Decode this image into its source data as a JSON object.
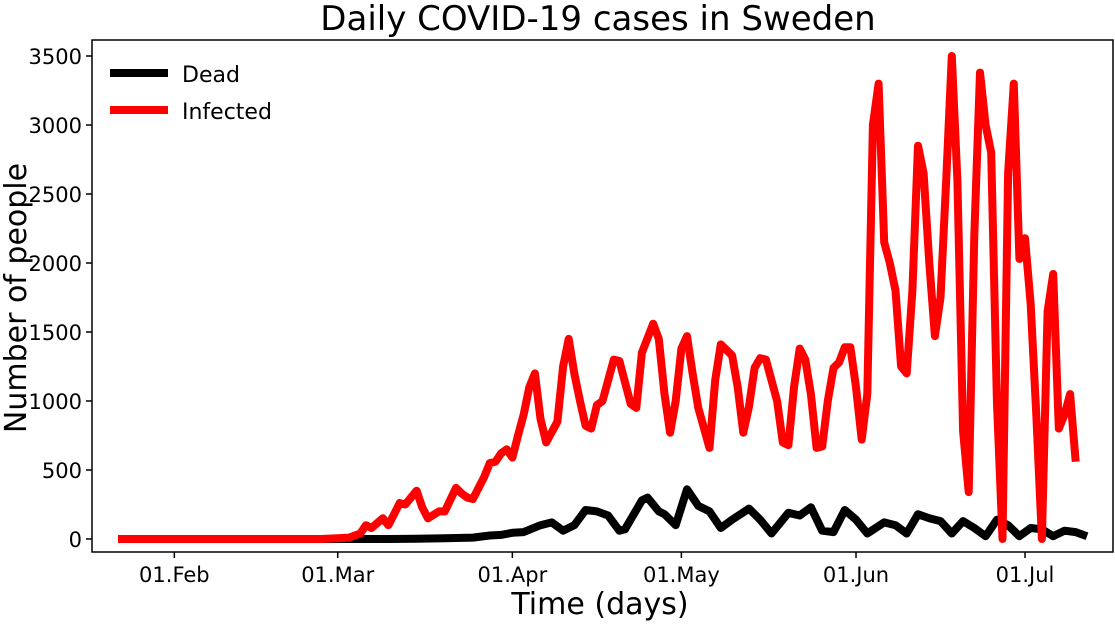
{
  "chart_data": {
    "type": "line",
    "title": "Daily COVID-19 cases in Sweden",
    "xlabel": "Time (days)",
    "ylabel": "Number of people",
    "x_start": "2020-01-22",
    "x_end": "2020-07-12",
    "ylim": [
      -100,
      3600
    ],
    "yticks": [
      0,
      500,
      1000,
      1500,
      2000,
      2500,
      3000,
      3500
    ],
    "xticks": [
      {
        "date": "2020-02-01",
        "label": "01.Feb"
      },
      {
        "date": "2020-03-01",
        "label": "01.Mar"
      },
      {
        "date": "2020-04-01",
        "label": "01.Apr"
      },
      {
        "date": "2020-05-01",
        "label": "01.May"
      },
      {
        "date": "2020-06-01",
        "label": "01.Jun"
      },
      {
        "date": "2020-07-01",
        "label": "01.Jul"
      }
    ],
    "grid": false,
    "legend_position": "top-left",
    "series": [
      {
        "name": "Dead",
        "color": "#000000",
        "points": [
          [
            "2020-01-22",
            0
          ],
          [
            "2020-03-01",
            0
          ],
          [
            "2020-03-10",
            0
          ],
          [
            "2020-03-15",
            2
          ],
          [
            "2020-03-20",
            5
          ],
          [
            "2020-03-25",
            10
          ],
          [
            "2020-03-28",
            25
          ],
          [
            "2020-03-30",
            30
          ],
          [
            "2020-04-01",
            45
          ],
          [
            "2020-04-03",
            50
          ],
          [
            "2020-04-06",
            100
          ],
          [
            "2020-04-08",
            120
          ],
          [
            "2020-04-10",
            60
          ],
          [
            "2020-04-12",
            100
          ],
          [
            "2020-04-14",
            210
          ],
          [
            "2020-04-16",
            200
          ],
          [
            "2020-04-18",
            170
          ],
          [
            "2020-04-20",
            60
          ],
          [
            "2020-04-21",
            70
          ],
          [
            "2020-04-24",
            280
          ],
          [
            "2020-04-25",
            300
          ],
          [
            "2020-04-27",
            200
          ],
          [
            "2020-04-28",
            180
          ],
          [
            "2020-04-30",
            100
          ],
          [
            "2020-05-02",
            360
          ],
          [
            "2020-05-04",
            240
          ],
          [
            "2020-05-06",
            200
          ],
          [
            "2020-05-08",
            80
          ],
          [
            "2020-05-10",
            140
          ],
          [
            "2020-05-13",
            220
          ],
          [
            "2020-05-15",
            140
          ],
          [
            "2020-05-17",
            40
          ],
          [
            "2020-05-20",
            190
          ],
          [
            "2020-05-22",
            170
          ],
          [
            "2020-05-24",
            230
          ],
          [
            "2020-05-26",
            60
          ],
          [
            "2020-05-28",
            50
          ],
          [
            "2020-05-30",
            210
          ],
          [
            "2020-06-01",
            140
          ],
          [
            "2020-06-03",
            40
          ],
          [
            "2020-06-06",
            120
          ],
          [
            "2020-06-08",
            100
          ],
          [
            "2020-06-10",
            40
          ],
          [
            "2020-06-12",
            180
          ],
          [
            "2020-06-14",
            150
          ],
          [
            "2020-06-16",
            130
          ],
          [
            "2020-06-18",
            40
          ],
          [
            "2020-06-20",
            130
          ],
          [
            "2020-06-22",
            80
          ],
          [
            "2020-06-24",
            20
          ],
          [
            "2020-06-26",
            140
          ],
          [
            "2020-06-28",
            100
          ],
          [
            "2020-06-30",
            20
          ],
          [
            "2020-07-02",
            80
          ],
          [
            "2020-07-04",
            70
          ],
          [
            "2020-07-06",
            20
          ],
          [
            "2020-07-08",
            60
          ],
          [
            "2020-07-10",
            50
          ],
          [
            "2020-07-12",
            20
          ]
        ]
      },
      {
        "name": "Infected",
        "color": "#ff0000",
        "points": [
          [
            "2020-01-22",
            0
          ],
          [
            "2020-02-27",
            0
          ],
          [
            "2020-03-01",
            5
          ],
          [
            "2020-03-03",
            10
          ],
          [
            "2020-03-05",
            40
          ],
          [
            "2020-03-06",
            100
          ],
          [
            "2020-03-07",
            80
          ],
          [
            "2020-03-09",
            150
          ],
          [
            "2020-03-10",
            100
          ],
          [
            "2020-03-11",
            180
          ],
          [
            "2020-03-12",
            260
          ],
          [
            "2020-03-13",
            250
          ],
          [
            "2020-03-15",
            350
          ],
          [
            "2020-03-16",
            230
          ],
          [
            "2020-03-17",
            150
          ],
          [
            "2020-03-19",
            200
          ],
          [
            "2020-03-20",
            200
          ],
          [
            "2020-03-22",
            370
          ],
          [
            "2020-03-23",
            330
          ],
          [
            "2020-03-24",
            300
          ],
          [
            "2020-03-25",
            290
          ],
          [
            "2020-03-27",
            450
          ],
          [
            "2020-03-28",
            550
          ],
          [
            "2020-03-29",
            560
          ],
          [
            "2020-03-30",
            620
          ],
          [
            "2020-03-31",
            650
          ],
          [
            "2020-04-01",
            590
          ],
          [
            "2020-04-02",
            750
          ],
          [
            "2020-04-03",
            900
          ],
          [
            "2020-04-04",
            1100
          ],
          [
            "2020-04-05",
            1200
          ],
          [
            "2020-04-06",
            870
          ],
          [
            "2020-04-07",
            700
          ],
          [
            "2020-04-09",
            850
          ],
          [
            "2020-04-10",
            1250
          ],
          [
            "2020-04-11",
            1450
          ],
          [
            "2020-04-12",
            1200
          ],
          [
            "2020-04-13",
            1000
          ],
          [
            "2020-04-14",
            820
          ],
          [
            "2020-04-15",
            800
          ],
          [
            "2020-04-16",
            970
          ],
          [
            "2020-04-17",
            1000
          ],
          [
            "2020-04-19",
            1300
          ],
          [
            "2020-04-20",
            1290
          ],
          [
            "2020-04-22",
            980
          ],
          [
            "2020-04-23",
            950
          ],
          [
            "2020-04-24",
            1350
          ],
          [
            "2020-04-26",
            1560
          ],
          [
            "2020-04-27",
            1450
          ],
          [
            "2020-04-28",
            1050
          ],
          [
            "2020-04-29",
            770
          ],
          [
            "2020-04-30",
            1000
          ],
          [
            "2020-05-01",
            1380
          ],
          [
            "2020-05-02",
            1470
          ],
          [
            "2020-05-03",
            1200
          ],
          [
            "2020-05-04",
            950
          ],
          [
            "2020-05-06",
            660
          ],
          [
            "2020-05-07",
            1150
          ],
          [
            "2020-05-08",
            1410
          ],
          [
            "2020-05-10",
            1330
          ],
          [
            "2020-05-11",
            1100
          ],
          [
            "2020-05-12",
            770
          ],
          [
            "2020-05-13",
            960
          ],
          [
            "2020-05-14",
            1240
          ],
          [
            "2020-05-15",
            1310
          ],
          [
            "2020-05-16",
            1300
          ],
          [
            "2020-05-18",
            1000
          ],
          [
            "2020-05-19",
            700
          ],
          [
            "2020-05-20",
            680
          ],
          [
            "2020-05-21",
            1100
          ],
          [
            "2020-05-22",
            1380
          ],
          [
            "2020-05-23",
            1300
          ],
          [
            "2020-05-24",
            1050
          ],
          [
            "2020-05-25",
            660
          ],
          [
            "2020-05-26",
            670
          ],
          [
            "2020-05-27",
            1000
          ],
          [
            "2020-05-28",
            1240
          ],
          [
            "2020-05-29",
            1280
          ],
          [
            "2020-05-30",
            1390
          ],
          [
            "2020-05-31",
            1390
          ],
          [
            "2020-06-01",
            1100
          ],
          [
            "2020-06-02",
            720
          ],
          [
            "2020-06-03",
            1050
          ],
          [
            "2020-06-04",
            3000
          ],
          [
            "2020-06-05",
            3300
          ],
          [
            "2020-06-06",
            2150
          ],
          [
            "2020-06-07",
            2000
          ],
          [
            "2020-06-08",
            1800
          ],
          [
            "2020-06-09",
            1250
          ],
          [
            "2020-06-10",
            1200
          ],
          [
            "2020-06-11",
            1800
          ],
          [
            "2020-06-12",
            2850
          ],
          [
            "2020-06-13",
            2650
          ],
          [
            "2020-06-14",
            2000
          ],
          [
            "2020-06-15",
            1470
          ],
          [
            "2020-06-16",
            1750
          ],
          [
            "2020-06-17",
            2600
          ],
          [
            "2020-06-18",
            3500
          ],
          [
            "2020-06-19",
            2600
          ],
          [
            "2020-06-20",
            780
          ],
          [
            "2020-06-21",
            340
          ],
          [
            "2020-06-22",
            2200
          ],
          [
            "2020-06-23",
            3380
          ],
          [
            "2020-06-24",
            3000
          ],
          [
            "2020-06-25",
            2800
          ],
          [
            "2020-06-26",
            1000
          ],
          [
            "2020-06-27",
            0
          ],
          [
            "2020-06-28",
            2650
          ],
          [
            "2020-06-29",
            3300
          ],
          [
            "2020-06-30",
            2030
          ],
          [
            "2020-07-01",
            2180
          ],
          [
            "2020-07-02",
            1700
          ],
          [
            "2020-07-03",
            900
          ],
          [
            "2020-07-04",
            0
          ],
          [
            "2020-07-05",
            1650
          ],
          [
            "2020-07-06",
            1920
          ],
          [
            "2020-07-07",
            800
          ],
          [
            "2020-07-08",
            900
          ],
          [
            "2020-07-09",
            1050
          ],
          [
            "2020-07-10",
            560
          ]
        ]
      }
    ]
  }
}
